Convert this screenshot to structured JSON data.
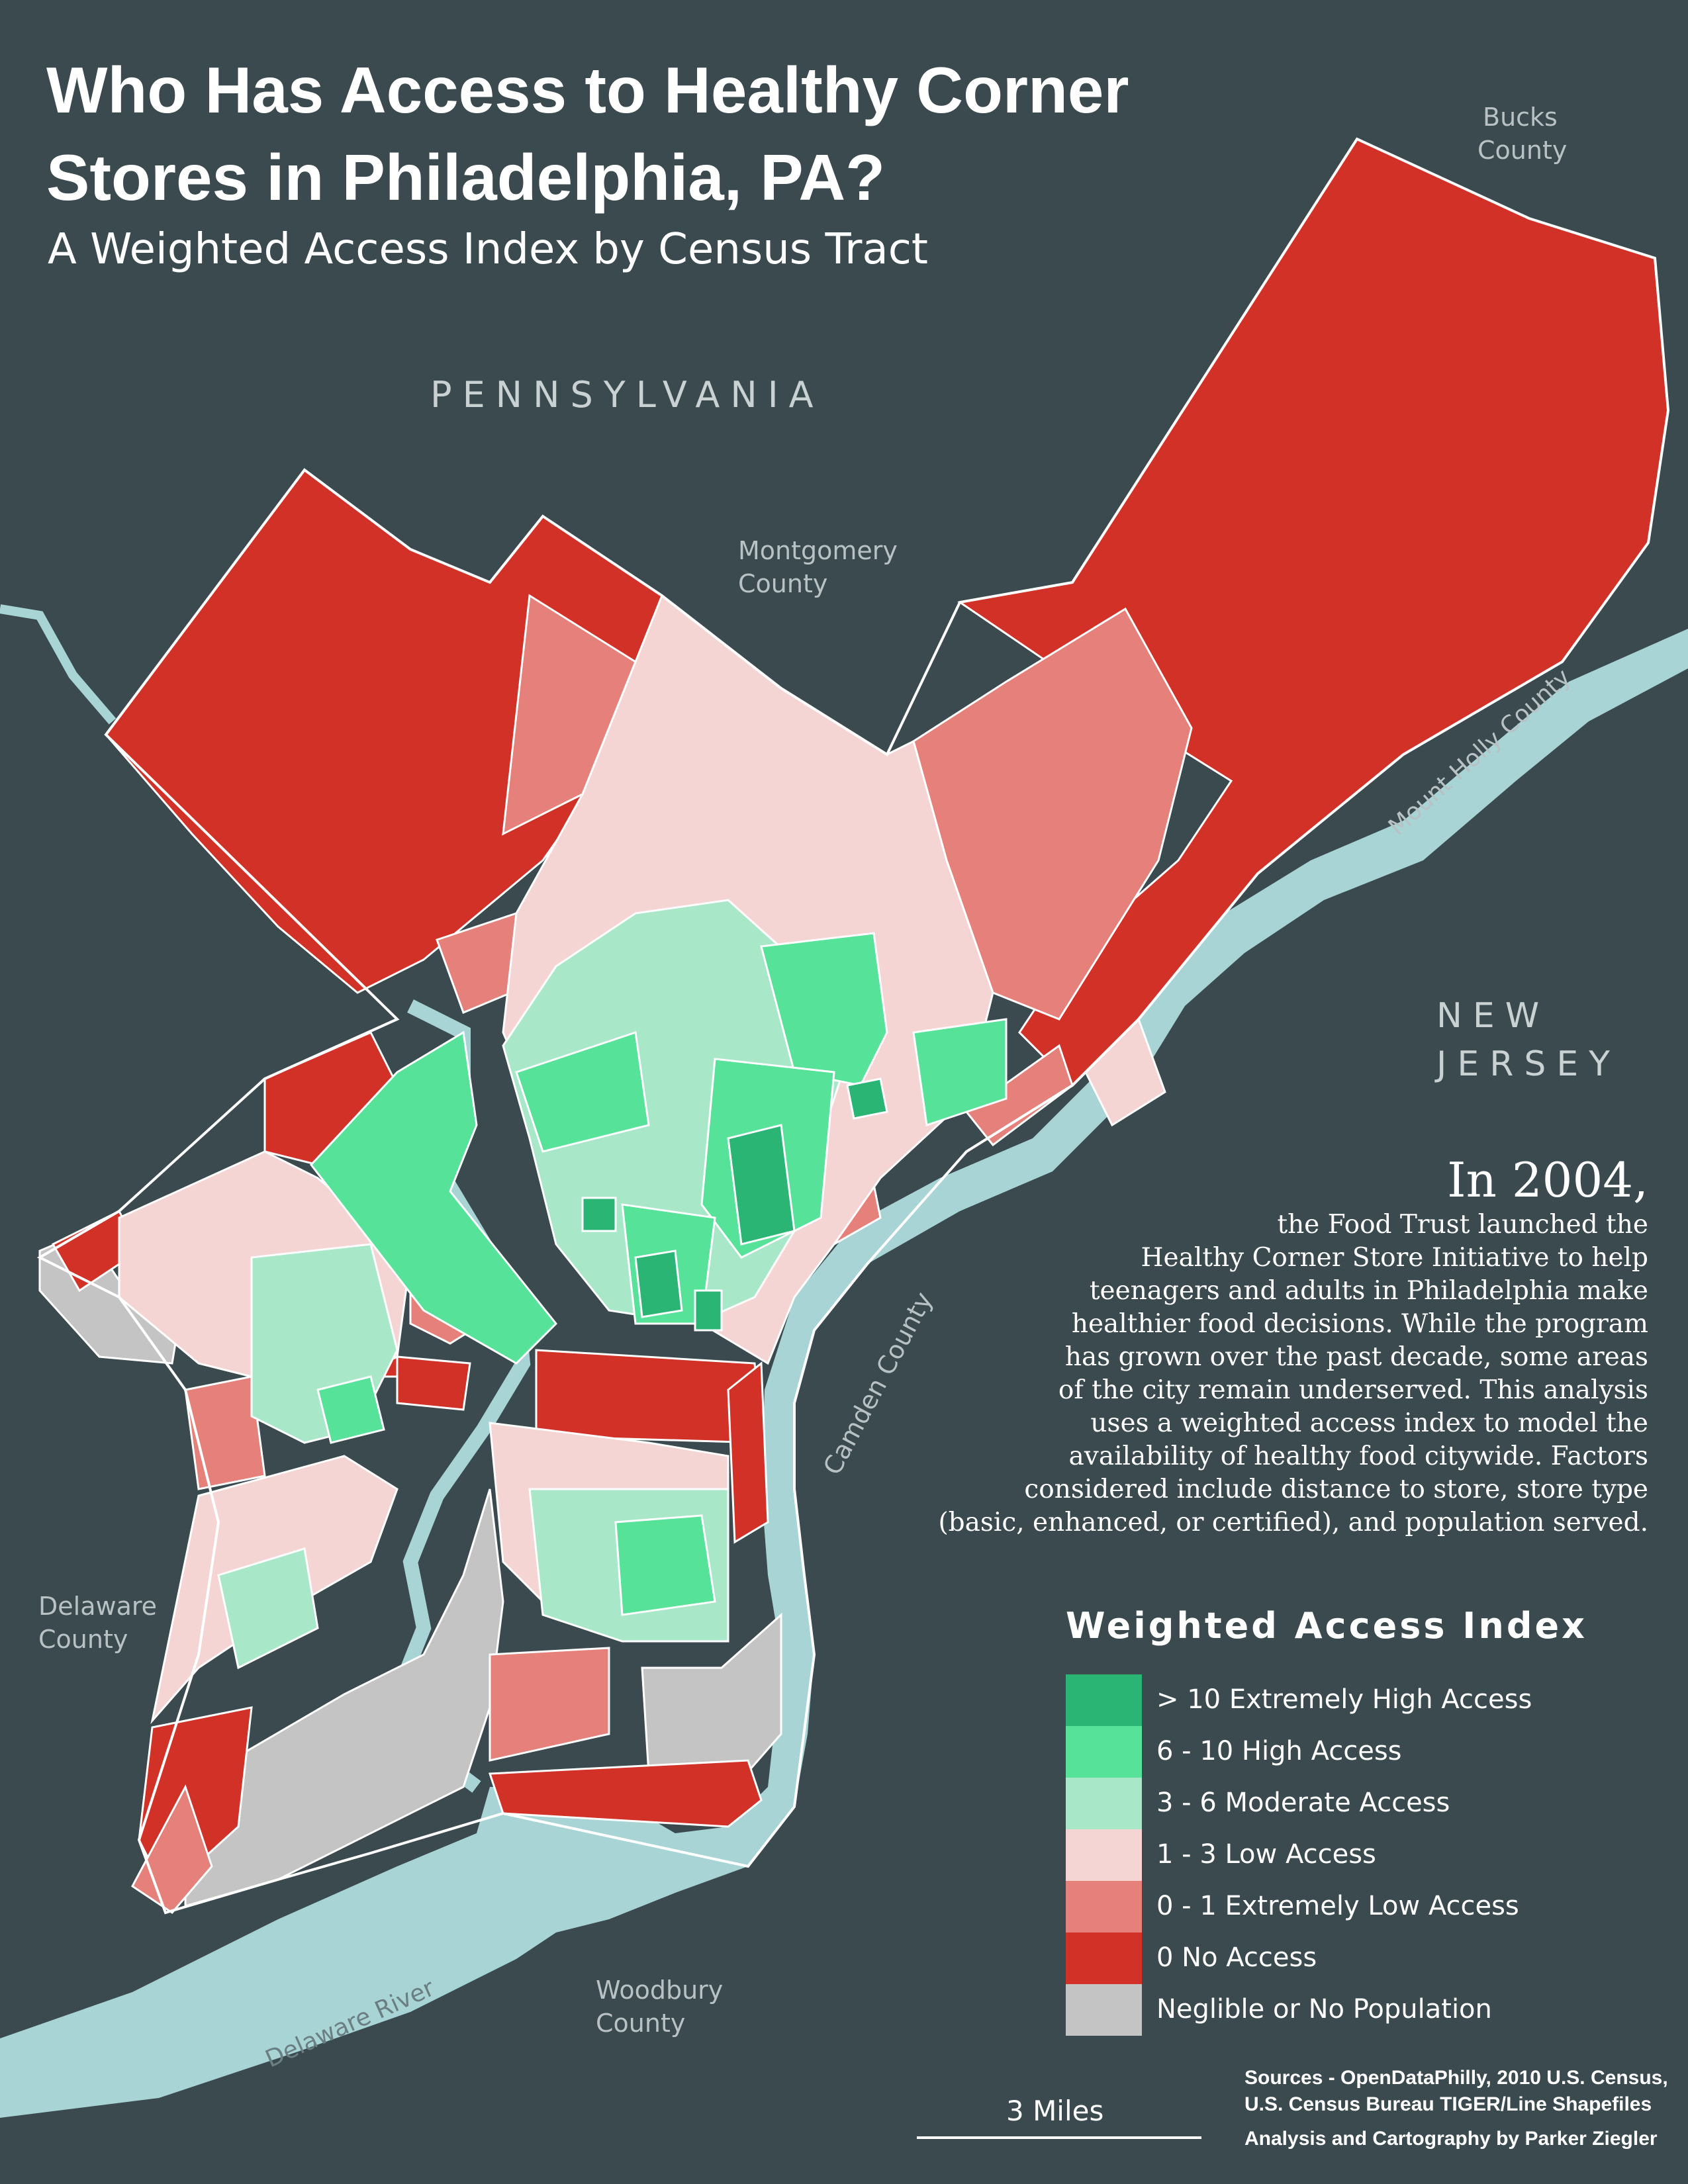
{
  "title": "Who Has Access to Healthy Corner Stores in Philadelphia, PA?",
  "subtitle": "A Weighted Access Index by Census Tract",
  "regions": {
    "pennsylvania": "PENNSYLVANIA",
    "new_jersey_line1": "NEW",
    "new_jersey_line2": "JERSEY",
    "bucks_line1": "Bucks",
    "bucks_line2": "County",
    "montgomery_line1": "Montgomery",
    "montgomery_line2": "County",
    "delaware_county_line1": "Delaware",
    "delaware_county_line2": "County",
    "woodbury_line1": "Woodbury",
    "woodbury_line2": "County",
    "mount_holly": "Mount Holly County",
    "camden": "Camden County",
    "delaware_river": "Delaware River"
  },
  "paragraph": {
    "lead": "In 2004,",
    "lines": [
      "the Food Trust launched the",
      "Healthy Corner Store Initiative to help",
      "teenagers and adults in Philadelphia make",
      "healthier food decisions. While the program",
      "has grown over the past decade, some areas",
      "of the city remain underserved. This analysis",
      "uses a weighted access index to model the",
      "availability of healthy food citywide. Factors",
      "considered include distance to store, store type",
      "(basic, enhanced, or certified), and population served."
    ]
  },
  "legend": {
    "title": "Weighted Access Index",
    "items": [
      {
        "label": "> 10  Extremely High Access",
        "color": "#2bb575"
      },
      {
        "label": "6 - 10  High Access",
        "color": "#57e29a"
      },
      {
        "label": "3 - 6  Moderate Access",
        "color": "#a8e8c8"
      },
      {
        "label": "1 - 3  Low Access",
        "color": "#f5d5d4"
      },
      {
        "label": "0 - 1  Extremely Low Access",
        "color": "#e5807a"
      },
      {
        "label": "0  No Access",
        "color": "#d13127"
      },
      {
        "label": "Neglible or No Population",
        "color": "#c4c4c4"
      }
    ]
  },
  "scale": "3 Miles",
  "sources": {
    "line1": "Sources - OpenDataPhilly, 2010 U.S. Census,",
    "line2": "U.S. Census Bureau TIGER/Line Shapefiles"
  },
  "credit": "Analysis and Cartography by Parker Ziegler",
  "colors": {
    "background": "#3a4a4e",
    "water": "#a8d4d6",
    "boundary": "#ffffff"
  }
}
